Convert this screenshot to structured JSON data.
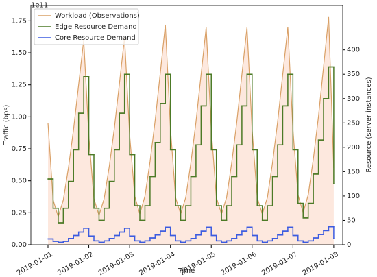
{
  "chart_data": {
    "type": "line",
    "xlabel": "Time",
    "ylabel": "Traffic (bps)",
    "y2label": "Resource (server instances)",
    "y_offset_label": "1e11",
    "x": [
      0,
      0.125,
      0.25,
      0.375,
      0.5,
      0.625,
      0.75,
      0.875,
      1,
      1.125,
      1.25,
      1.375,
      1.5,
      1.625,
      1.75,
      1.875,
      2,
      2.125,
      2.25,
      2.375,
      2.5,
      2.625,
      2.75,
      2.875,
      3,
      3.125,
      3.25,
      3.375,
      3.5,
      3.625,
      3.75,
      3.875,
      4,
      4.125,
      4.25,
      4.375,
      4.5,
      4.625,
      4.75,
      4.875,
      5,
      5.125,
      5.25,
      5.375,
      5.5,
      5.625,
      5.75,
      5.875,
      6,
      6.125,
      6.25,
      6.375,
      6.5,
      6.625,
      6.75,
      6.875,
      7
    ],
    "xlim": [
      -0.42,
      7.22
    ],
    "xticks": [
      {
        "value": 0,
        "label": "2019-01-01"
      },
      {
        "value": 1,
        "label": "2019-01-02"
      },
      {
        "value": 2,
        "label": "2019-01-03"
      },
      {
        "value": 3,
        "label": "2019-01-04"
      },
      {
        "value": 4,
        "label": "2019-01-05"
      },
      {
        "value": 5,
        "label": "2019-01-06"
      },
      {
        "value": 6,
        "label": "2019-01-07"
      },
      {
        "value": 7,
        "label": "2019-01-08"
      }
    ],
    "ylim": [
      0,
      1.87
    ],
    "yticks": [
      {
        "value": 0,
        "label": "0.00"
      },
      {
        "value": 0.25,
        "label": "0.25"
      },
      {
        "value": 0.5,
        "label": "0.50"
      },
      {
        "value": 0.75,
        "label": "0.75"
      },
      {
        "value": 1,
        "label": "1.00"
      },
      {
        "value": 1.25,
        "label": "1.25"
      },
      {
        "value": 1.5,
        "label": "1.50"
      },
      {
        "value": 1.75,
        "label": "1.75"
      }
    ],
    "y2lim": [
      0,
      491
    ],
    "y2ticks": [
      0,
      50,
      100,
      150,
      200,
      250,
      300,
      350,
      400
    ],
    "legend": "upper left",
    "series": [
      {
        "name": "Workload (Observations)",
        "color": "#d9a066",
        "fill": "#fde8de",
        "step": false,
        "values": [
          0.95,
          0.35,
          0.22,
          0.35,
          0.6,
          0.9,
          1.25,
          1.6,
          0.85,
          0.36,
          0.23,
          0.36,
          0.61,
          0.91,
          1.26,
          1.62,
          0.86,
          0.38,
          0.24,
          0.38,
          0.65,
          0.97,
          1.34,
          1.72,
          0.91,
          0.37,
          0.24,
          0.37,
          0.64,
          0.96,
          1.33,
          1.7,
          0.9,
          0.37,
          0.24,
          0.37,
          0.64,
          0.96,
          1.33,
          1.7,
          0.9,
          0.37,
          0.24,
          0.37,
          0.64,
          0.96,
          1.33,
          1.7,
          0.9,
          0.39,
          0.25,
          0.39,
          0.67,
          1.0,
          1.39,
          1.78,
          0.6
        ]
      },
      {
        "name": "Edge Resource Demand",
        "color": "#4c7a26",
        "axis": "y2",
        "step": true,
        "values": [
          135,
          75,
          45,
          75,
          130,
          195,
          270,
          345,
          185,
          75,
          50,
          75,
          130,
          195,
          270,
          350,
          185,
          80,
          50,
          80,
          140,
          210,
          290,
          350,
          195,
          80,
          50,
          80,
          140,
          205,
          285,
          350,
          195,
          80,
          50,
          80,
          140,
          205,
          285,
          350,
          195,
          80,
          50,
          80,
          140,
          205,
          285,
          350,
          195,
          85,
          55,
          85,
          145,
          215,
          300,
          365,
          125
        ]
      },
      {
        "name": "Core Resource Demand",
        "color": "#3b5be0",
        "axis": "y2",
        "step": true,
        "values": [
          12,
          7,
          5,
          7,
          13,
          19,
          26,
          34,
          18,
          8,
          5,
          8,
          13,
          19,
          26,
          34,
          18,
          8,
          5,
          8,
          14,
          20,
          28,
          36,
          19,
          8,
          5,
          8,
          13,
          20,
          28,
          36,
          19,
          8,
          5,
          8,
          13,
          20,
          28,
          36,
          19,
          8,
          5,
          8,
          13,
          20,
          28,
          36,
          19,
          8,
          5,
          8,
          14,
          21,
          29,
          37,
          13
        ]
      }
    ]
  }
}
